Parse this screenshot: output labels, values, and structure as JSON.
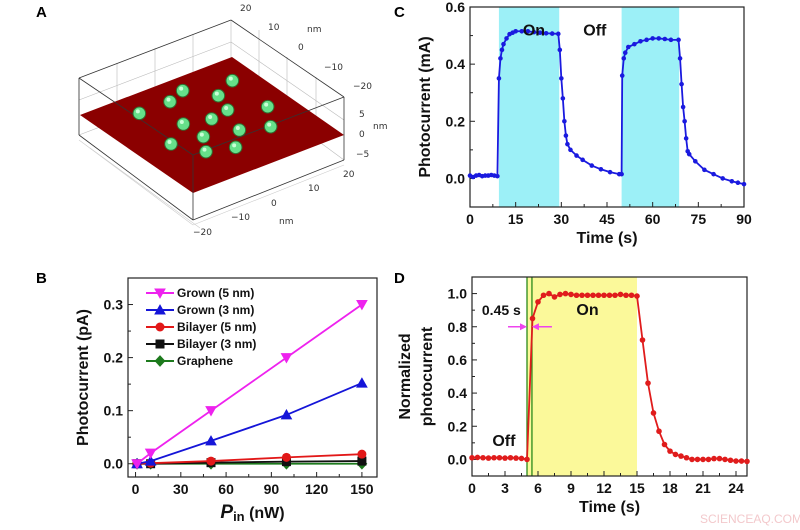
{
  "panels": {
    "a": "A",
    "b": "B",
    "c": "C",
    "d": "D"
  },
  "watermark": "SCIENCEAQ.COM",
  "panel_a": {
    "plane_color": "#8b0000",
    "dot_color": "#66e08a",
    "y_ticks": [
      "20",
      "10",
      "0",
      "−10",
      "−20"
    ],
    "z_ticks": [
      "5",
      "0",
      "−5"
    ],
    "x_ticks": [
      "20",
      "10",
      "0",
      "−10",
      "−20"
    ],
    "unit": "nm"
  },
  "chart_data": [
    {
      "id": "c",
      "type": "line",
      "xlabel": "Time (s)",
      "ylabel": "Photocurrent (mA)",
      "xlim": [
        0,
        90
      ],
      "ylim": [
        -0.1,
        0.6
      ],
      "xticks": [
        0,
        15,
        30,
        45,
        60,
        75,
        90
      ],
      "yticks": [
        "0.0",
        "0.2",
        "0.4",
        "0.6"
      ],
      "shaded_regions": [
        [
          9.5,
          29.3
        ],
        [
          49.8,
          68.7
        ]
      ],
      "shade_color": "#9cf0f7",
      "color": "#1a1adf",
      "annotations": [
        {
          "text": "On",
          "x": 21,
          "y": 0.5,
          "color": "#d42020"
        },
        {
          "text": "Off",
          "x": 41,
          "y": 0.5,
          "color": "#d42020"
        }
      ],
      "series": [
        {
          "x": [
            0,
            1,
            2,
            3,
            4,
            5,
            6,
            7,
            8,
            9,
            9.5,
            10,
            10.5,
            11,
            12,
            13,
            14,
            15,
            17,
            19,
            21,
            23,
            25,
            27,
            29,
            29.5,
            30,
            30.5,
            31,
            31.5,
            32,
            33,
            35,
            37,
            40,
            43,
            46,
            49,
            49.8,
            50,
            50.5,
            51,
            52,
            54,
            56,
            58,
            60,
            62,
            64,
            66,
            68.5,
            69,
            69.5,
            70,
            70.5,
            71,
            71.5,
            72,
            74,
            77,
            80,
            83,
            86,
            88,
            90
          ],
          "y": [
            0.01,
            0.005,
            0.01,
            0.012,
            0.008,
            0.01,
            0.01,
            0.012,
            0.01,
            0.008,
            0.35,
            0.42,
            0.45,
            0.47,
            0.49,
            0.505,
            0.51,
            0.515,
            0.515,
            0.515,
            0.512,
            0.51,
            0.508,
            0.507,
            0.506,
            0.45,
            0.35,
            0.28,
            0.2,
            0.15,
            0.12,
            0.1,
            0.08,
            0.065,
            0.045,
            0.032,
            0.022,
            0.015,
            0.015,
            0.36,
            0.42,
            0.44,
            0.46,
            0.47,
            0.48,
            0.485,
            0.49,
            0.49,
            0.488,
            0.485,
            0.485,
            0.42,
            0.33,
            0.25,
            0.2,
            0.14,
            0.095,
            0.085,
            0.06,
            0.03,
            0.015,
            0.0,
            -0.01,
            -0.015,
            -0.02
          ]
        }
      ]
    },
    {
      "id": "b",
      "type": "line",
      "xlabel": "P",
      "xlabel_sub": "in",
      "xlabel_unit": " (nW)",
      "ylabel": "Photocurrent (pA)",
      "xlim": [
        -5,
        160
      ],
      "ylim": [
        -0.025,
        0.35
      ],
      "xticks": [
        0,
        30,
        60,
        90,
        120,
        150
      ],
      "yticks": [
        "0.0",
        "0.1",
        "0.2",
        "0.3"
      ],
      "legend": "top-left",
      "x": [
        1,
        10,
        50,
        100,
        150
      ],
      "series": [
        {
          "name": "Grown (5 nm)",
          "color": "#ee22ee",
          "marker": "triangle-down",
          "values": [
            0,
            0.02,
            0.1,
            0.2,
            0.3
          ]
        },
        {
          "name": "Grown (3 nm)",
          "color": "#1515d8",
          "marker": "triangle-up",
          "values": [
            0,
            0.005,
            0.043,
            0.092,
            0.152
          ]
        },
        {
          "name": "Bilayer (5 nm)",
          "color": "#e21818",
          "marker": "circle",
          "values": [
            0,
            0.001,
            0.005,
            0.012,
            0.018
          ]
        },
        {
          "name": "Bilayer (3 nm)",
          "color": "#111111",
          "marker": "square",
          "values": [
            0,
            0,
            0.002,
            0.004,
            0.005
          ]
        },
        {
          "name": "Graphene",
          "color": "#1d7a1d",
          "marker": "diamond",
          "values": [
            0,
            0,
            0,
            0,
            0
          ]
        }
      ]
    },
    {
      "id": "d",
      "type": "line",
      "xlabel": "Time (s)",
      "ylabel": [
        "Normalized",
        "photocurrent"
      ],
      "xlim": [
        0,
        25
      ],
      "ylim": [
        -0.1,
        1.1
      ],
      "xticks": [
        0,
        3,
        6,
        9,
        12,
        15,
        18,
        21,
        24
      ],
      "yticks": [
        "0.0",
        "0.2",
        "0.4",
        "0.6",
        "0.8",
        "1.0"
      ],
      "shaded_regions": [
        [
          5,
          15
        ]
      ],
      "shade_color": "#fbf99a",
      "vlines": [
        5.0,
        5.45
      ],
      "vline_color": "#2a8a1a",
      "color": "#e01c1c",
      "annotations": [
        {
          "text": "0.45 s",
          "x": 0.9,
          "y": 0.87,
          "color": "#111111"
        },
        {
          "text": "On",
          "x": 10.5,
          "y": 0.87,
          "color": "#1a1ab0"
        },
        {
          "text": "Off",
          "x": 2.9,
          "y": 0.08,
          "color": "#1a1ab0"
        }
      ],
      "arrow_color": "#ee44ee",
      "series": [
        {
          "x": [
            0,
            0.5,
            1,
            1.5,
            2,
            2.5,
            3,
            3.5,
            4,
            4.5,
            5,
            5.5,
            6,
            6.5,
            7,
            7.5,
            8,
            8.5,
            9,
            9.5,
            10,
            10.5,
            11,
            11.5,
            12,
            12.5,
            13,
            13.5,
            14,
            14.5,
            15,
            15.5,
            16,
            16.5,
            17,
            17.5,
            18,
            18.5,
            19,
            19.5,
            20,
            20.5,
            21,
            21.5,
            22,
            22.5,
            23,
            23.5,
            24,
            24.5,
            25
          ],
          "y": [
            0.01,
            0.012,
            0.01,
            0.008,
            0.01,
            0.01,
            0.008,
            0.01,
            0.008,
            0.006,
            0.0,
            0.85,
            0.95,
            0.99,
            1.0,
            0.98,
            0.995,
            1.0,
            0.995,
            0.99,
            0.99,
            0.99,
            0.99,
            0.99,
            0.99,
            0.99,
            0.99,
            0.995,
            0.99,
            0.99,
            0.985,
            0.72,
            0.46,
            0.28,
            0.17,
            0.09,
            0.05,
            0.03,
            0.02,
            0.01,
            0.0,
            0.0,
            0.0,
            0.0,
            0.005,
            0.005,
            0.0,
            -0.005,
            -0.01,
            -0.01,
            -0.012
          ]
        }
      ]
    }
  ]
}
